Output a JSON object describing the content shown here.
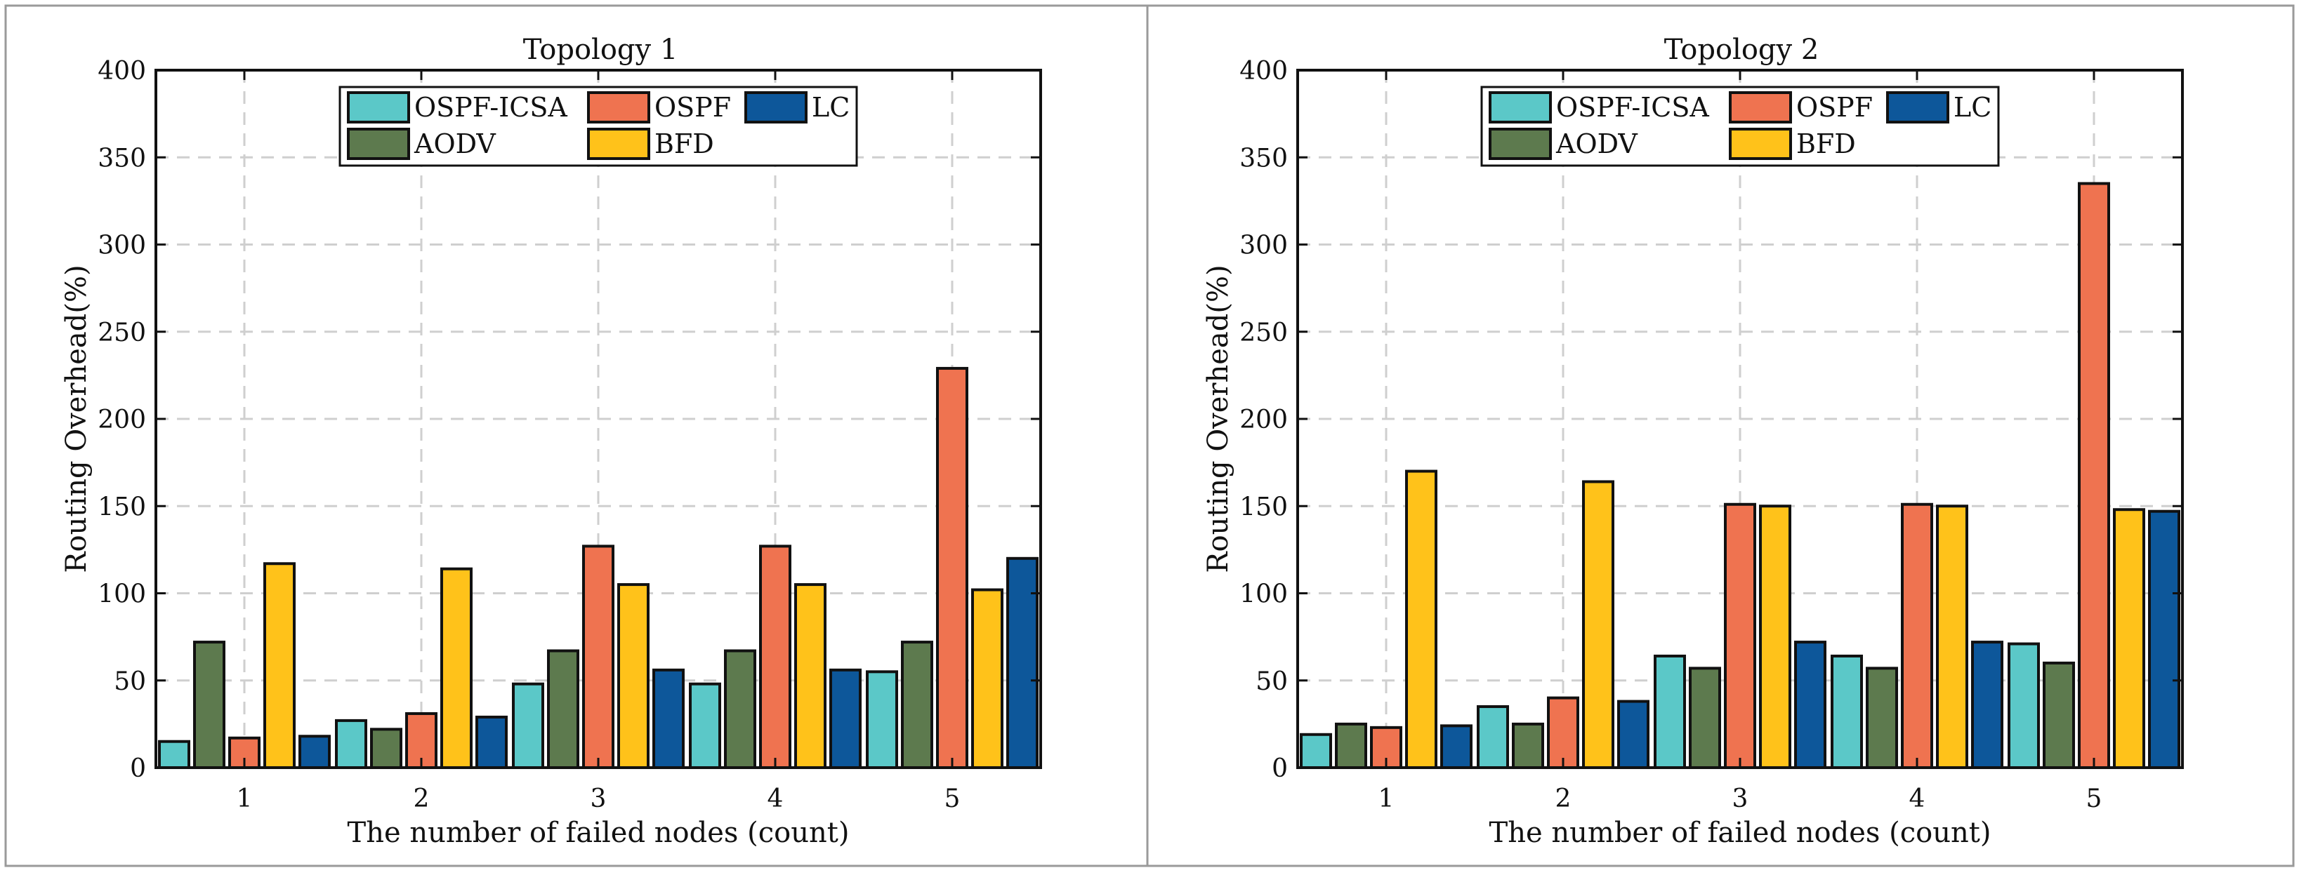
{
  "chart_data": [
    {
      "type": "bar",
      "title": "Topology 1",
      "xlabel": "The number of failed nodes (count)",
      "ylabel": "Routing Overhead(%)",
      "categories": [
        "1",
        "2",
        "3",
        "4",
        "5"
      ],
      "ylim": [
        0,
        400
      ],
      "yticks": [
        "0",
        "50",
        "100",
        "150",
        "200",
        "250",
        "300",
        "350",
        "400"
      ],
      "grid": true,
      "legend_position": "top-center",
      "series": [
        {
          "name": "OSPF-ICSA",
          "color": "#5bc8c8",
          "values": [
            15,
            27,
            48,
            48,
            55
          ]
        },
        {
          "name": "AODV",
          "color": "#5d7a4e",
          "values": [
            72,
            22,
            67,
            67,
            72
          ]
        },
        {
          "name": "OSPF",
          "color": "#ef7350",
          "values": [
            17,
            31,
            127,
            127,
            229
          ]
        },
        {
          "name": "BFD",
          "color": "#ffc21a",
          "values": [
            117,
            114,
            105,
            105,
            102
          ]
        },
        {
          "name": "LC",
          "color": "#0d579a",
          "values": [
            18,
            29,
            56,
            56,
            120
          ]
        }
      ]
    },
    {
      "type": "bar",
      "title": "Topology 2",
      "xlabel": "The number of failed nodes (count)",
      "ylabel": "Routing Overhead(%)",
      "categories": [
        "1",
        "2",
        "3",
        "4",
        "5"
      ],
      "ylim": [
        0,
        400
      ],
      "yticks": [
        "0",
        "50",
        "100",
        "150",
        "200",
        "250",
        "300",
        "350",
        "400"
      ],
      "grid": true,
      "legend_position": "top-center",
      "series": [
        {
          "name": "OSPF-ICSA",
          "color": "#5bc8c8",
          "values": [
            19,
            35,
            64,
            64,
            71
          ]
        },
        {
          "name": "AODV",
          "color": "#5d7a4e",
          "values": [
            25,
            25,
            57,
            57,
            60
          ]
        },
        {
          "name": "OSPF",
          "color": "#ef7350",
          "values": [
            23,
            40,
            151,
            151,
            335
          ]
        },
        {
          "name": "BFD",
          "color": "#ffc21a",
          "values": [
            170,
            164,
            150,
            150,
            148
          ]
        },
        {
          "name": "LC",
          "color": "#0d579a",
          "values": [
            24,
            38,
            72,
            72,
            147
          ]
        }
      ]
    }
  ]
}
